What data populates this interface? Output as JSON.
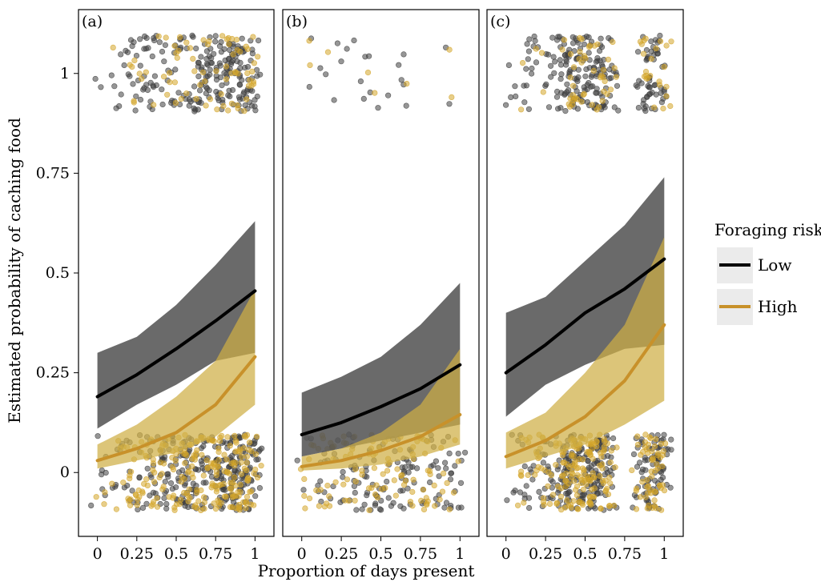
{
  "chart_data": {
    "type": "line",
    "xlabel": "Proportion of days present",
    "ylabel": "Estimated probability of caching food",
    "xlim": [
      -0.12,
      1.12
    ],
    "ylim": [
      -0.16,
      1.16
    ],
    "x_ticks": [
      0,
      0.25,
      0.5,
      0.75,
      1
    ],
    "x_tick_labels": [
      "0",
      "0.25",
      "0.5",
      "0.75",
      "1"
    ],
    "y_ticks": [
      0,
      0.25,
      0.5,
      0.75,
      1
    ],
    "y_tick_labels": [
      "0",
      "0.25",
      "0.5",
      "0.75",
      "1"
    ],
    "grid": false,
    "legend": {
      "title": "Foraging risk",
      "placement": "right",
      "entries": [
        {
          "label": "Low",
          "color": "#000000"
        },
        {
          "label": "High",
          "color": "#c8912a"
        }
      ]
    },
    "colors": {
      "low_line": "#000000",
      "low_band": "#555555",
      "high_line": "#c8912a",
      "high_band": "#cfae45",
      "low_point": "#3f3f3f",
      "high_point": "#d4a52a"
    },
    "panels": [
      {
        "label": "(a)",
        "series": [
          {
            "name": "Low",
            "x": [
              0,
              0.25,
              0.5,
              0.75,
              1
            ],
            "y": [
              0.19,
              0.245,
              0.31,
              0.38,
              0.455
            ],
            "lower": [
              0.11,
              0.17,
              0.22,
              0.28,
              0.3
            ],
            "upper": [
              0.3,
              0.34,
              0.42,
              0.52,
              0.63
            ]
          },
          {
            "name": "High",
            "x": [
              0,
              0.25,
              0.5,
              0.75,
              1
            ],
            "y": [
              0.03,
              0.06,
              0.1,
              0.17,
              0.29
            ],
            "lower": [
              0.01,
              0.03,
              0.05,
              0.09,
              0.17
            ],
            "upper": [
              0.07,
              0.12,
              0.19,
              0.28,
              0.46
            ]
          }
        ],
        "points_x_max": 1
      },
      {
        "label": "(b)",
        "series": [
          {
            "name": "Low",
            "x": [
              0,
              0.25,
              0.5,
              0.75,
              1
            ],
            "y": [
              0.095,
              0.125,
              0.165,
              0.21,
              0.27
            ],
            "lower": [
              0.04,
              0.06,
              0.08,
              0.1,
              0.12
            ],
            "upper": [
              0.2,
              0.24,
              0.29,
              0.37,
              0.475
            ]
          },
          {
            "name": "High",
            "x": [
              0,
              0.25,
              0.5,
              0.75,
              1
            ],
            "y": [
              0.015,
              0.03,
              0.055,
              0.09,
              0.145
            ],
            "lower": [
              0.005,
              0.01,
              0.02,
              0.04,
              0.07
            ],
            "upper": [
              0.04,
              0.06,
              0.1,
              0.17,
              0.31
            ]
          }
        ],
        "points_x_max": 1
      },
      {
        "label": "(c)",
        "series": [
          {
            "name": "Low",
            "x": [
              0,
              0.25,
              0.5,
              0.75,
              1
            ],
            "y": [
              0.25,
              0.32,
              0.4,
              0.46,
              0.535
            ],
            "lower": [
              0.14,
              0.22,
              0.27,
              0.31,
              0.32
            ],
            "upper": [
              0.4,
              0.44,
              0.53,
              0.62,
              0.74
            ]
          },
          {
            "name": "High",
            "x": [
              0,
              0.25,
              0.5,
              0.75,
              1
            ],
            "y": [
              0.04,
              0.08,
              0.14,
              0.23,
              0.37
            ],
            "lower": [
              0.01,
              0.04,
              0.07,
              0.12,
              0.18
            ],
            "upper": [
              0.1,
              0.15,
              0.25,
              0.37,
              0.59
            ]
          }
        ],
        "points_x_max": 1
      }
    ]
  }
}
